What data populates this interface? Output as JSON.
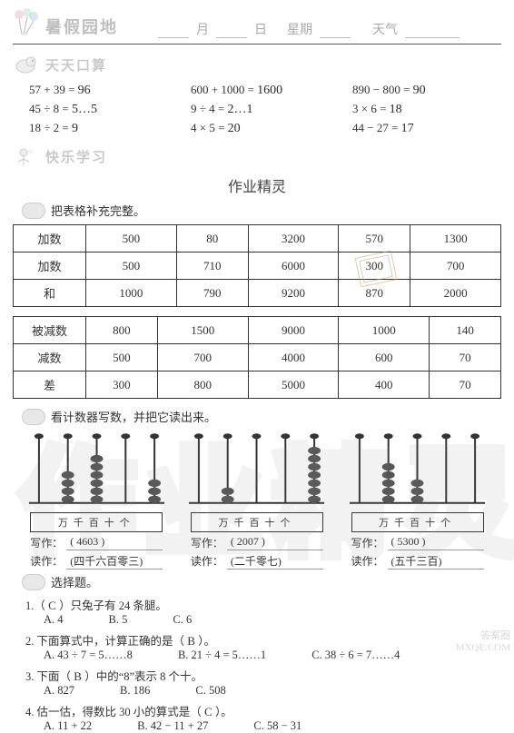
{
  "header": {
    "title": "暑假园地",
    "month_label": "月",
    "day_label": "日",
    "weekday_label": "星期",
    "weather_label": "天气"
  },
  "center_hand": "作业精灵",
  "section_arith": {
    "title": "天天口算",
    "items": [
      {
        "expr": "57 + 39 =",
        "ans": "96"
      },
      {
        "expr": "600 + 1000 =",
        "ans": "1600"
      },
      {
        "expr": "890 − 800 =",
        "ans": "90"
      },
      {
        "expr": "45 ÷ 8 =",
        "ans": "5…5"
      },
      {
        "expr": "9 ÷ 4 =",
        "ans": "2…1"
      },
      {
        "expr": "3 × 6 =",
        "ans": "18"
      },
      {
        "expr": "18 ÷ 2 =",
        "ans": "9"
      },
      {
        "expr": "4 × 5 =",
        "ans": "20"
      },
      {
        "expr": "44 − 27 =",
        "ans": "17"
      }
    ]
  },
  "section_learn": {
    "title": "快乐学习"
  },
  "task1": {
    "title": "把表格补充完整。",
    "add_table": {
      "rows": [
        {
          "label": "加数",
          "cells": [
            "500",
            "80",
            "3200",
            "570",
            "1300"
          ],
          "hand": [
            false,
            false,
            false,
            false,
            false
          ]
        },
        {
          "label": "加数",
          "cells": [
            "500",
            "710",
            "6000",
            "300",
            "700"
          ],
          "hand": [
            false,
            false,
            false,
            false,
            false
          ]
        },
        {
          "label": "和",
          "cells": [
            "1000",
            "790",
            "9200",
            "870",
            "2000"
          ],
          "hand": [
            true,
            true,
            true,
            true,
            true
          ]
        }
      ]
    },
    "sub_table": {
      "rows": [
        {
          "label": "被减数",
          "cells": [
            "800",
            "1500",
            "9000",
            "1000",
            "140"
          ],
          "hand": [
            false,
            false,
            false,
            false,
            false
          ]
        },
        {
          "label": "减数",
          "cells": [
            "500",
            "700",
            "4000",
            "600",
            "70"
          ],
          "hand": [
            false,
            false,
            false,
            false,
            false
          ]
        },
        {
          "label": "差",
          "cells": [
            "300",
            "800",
            "5000",
            "400",
            "70"
          ],
          "hand": [
            true,
            true,
            true,
            true,
            true
          ]
        }
      ]
    }
  },
  "task2": {
    "title": "看计数器写数，并把它读出来。",
    "places": "万千百十个",
    "abaci": [
      {
        "beads": [
          0,
          4,
          6,
          0,
          3
        ],
        "write_label": "写作：",
        "write": "( 4603 )",
        "read_label": "读作：",
        "read": "(四千六百零三)"
      },
      {
        "beads": [
          0,
          2,
          0,
          0,
          7
        ],
        "write_label": "写作：",
        "write": "( 2007 )",
        "read_label": "读作：",
        "read": "(二千零七)"
      },
      {
        "beads": [
          0,
          5,
          3,
          0,
          0
        ],
        "write_label": "写作：",
        "write": "( 5300 )",
        "read_label": "读作：",
        "read": "(五千三百)"
      }
    ]
  },
  "task3": {
    "title": "选择题。",
    "questions": [
      {
        "stem_pre": "1.（",
        "answer": "C",
        "stem_post": "）只兔子有 24 条腿。",
        "opts": [
          "A. 4",
          "B. 5",
          "C. 6"
        ]
      },
      {
        "stem_pre": "2. 下面算式中，计算正确的是（",
        "answer": "B",
        "stem_post": "）。",
        "opts": [
          "A. 43 ÷ 7 = 5……8",
          "B. 21 ÷ 4 = 5……1",
          "C. 38 ÷ 6 = 7……4"
        ]
      },
      {
        "stem_pre": "3. 下面（",
        "answer": "B",
        "stem_post": "）中的“8”表示 8 个十。",
        "opts": [
          "A. 827",
          "B. 186",
          "C. 508"
        ]
      },
      {
        "stem_pre": "4. 估一估，得数比 30 小的算式是（",
        "answer": "C",
        "stem_post": "）。",
        "opts": [
          "A. 11 + 22",
          "B. 42 − 11 + 27",
          "C. 58 − 31"
        ]
      }
    ]
  },
  "colors": {
    "header_text": "#a8a8a8",
    "title_text": "#bfbfbf",
    "border": "#333333",
    "bead": "#555555"
  },
  "watermark_chars": [
    "作",
    "业",
    "精",
    "灵"
  ]
}
